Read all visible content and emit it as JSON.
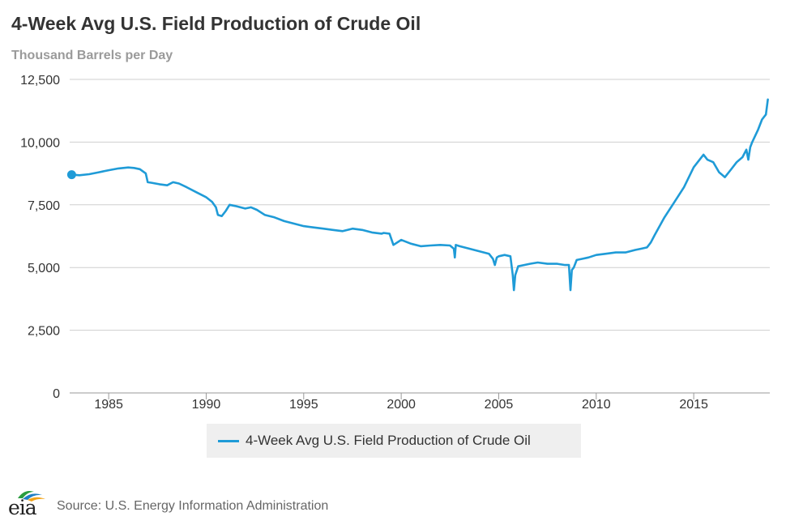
{
  "header": {
    "title": "4-Week Avg U.S. Field Production of Crude Oil",
    "subtitle": "Thousand Barrels per Day"
  },
  "legend": {
    "label": "4-Week Avg U.S. Field Production of Crude Oil"
  },
  "footer": {
    "logo_text": "eia",
    "source": "Source: U.S. Energy Information Administration"
  },
  "colors": {
    "series": "#1f9bd7",
    "grid": "#cfcfcf",
    "axis_text": "#333333"
  },
  "chart_data": {
    "type": "line",
    "title": "4-Week Avg U.S. Field Production of Crude Oil",
    "ylabel": "Thousand Barrels per Day",
    "xlim": [
      1983,
      2018.9
    ],
    "ylim": [
      0,
      12500
    ],
    "yticks": [
      0,
      2500,
      5000,
      7500,
      10000,
      12500
    ],
    "ytick_labels": [
      "0",
      "2,500",
      "5,000",
      "7,500",
      "10,000",
      "12,500"
    ],
    "xticks": [
      1985,
      1990,
      1995,
      2000,
      2005,
      2010,
      2015
    ],
    "xtick_labels": [
      "1985",
      "1990",
      "1995",
      "2000",
      "2005",
      "2010",
      "2015"
    ],
    "grid": true,
    "legend_position": "bottom",
    "series": [
      {
        "name": "4-Week Avg U.S. Field Production of Crude Oil",
        "x": [
          1983.1,
          1983.5,
          1984.0,
          1984.5,
          1985.0,
          1985.5,
          1986.0,
          1986.3,
          1986.6,
          1986.9,
          1987.0,
          1987.2,
          1987.6,
          1988.0,
          1988.3,
          1988.6,
          1989.0,
          1989.5,
          1990.0,
          1990.3,
          1990.5,
          1990.6,
          1990.8,
          1991.0,
          1991.2,
          1991.5,
          1992.0,
          1992.3,
          1992.6,
          1993.0,
          1993.5,
          1994.0,
          1994.5,
          1995.0,
          1995.5,
          1996.0,
          1996.5,
          1997.0,
          1997.5,
          1998.0,
          1998.5,
          1999.0,
          1999.1,
          1999.4,
          1999.6,
          2000.0,
          2000.5,
          2001.0,
          2001.5,
          2002.0,
          2002.5,
          2002.7,
          2002.75,
          2002.8,
          2003.0,
          2003.5,
          2004.0,
          2004.5,
          2004.7,
          2004.8,
          2004.9,
          2005.0,
          2005.3,
          2005.6,
          2005.72,
          2005.78,
          2005.85,
          2006.0,
          2006.3,
          2006.6,
          2007.0,
          2007.5,
          2008.0,
          2008.4,
          2008.6,
          2008.68,
          2008.75,
          2008.85,
          2009.0,
          2009.3,
          2009.6,
          2010.0,
          2010.5,
          2011.0,
          2011.5,
          2012.0,
          2012.3,
          2012.6,
          2012.75,
          2012.8,
          2013.0,
          2013.5,
          2014.0,
          2014.5,
          2015.0,
          2015.3,
          2015.5,
          2015.7,
          2016.0,
          2016.3,
          2016.6,
          2016.9,
          2017.2,
          2017.5,
          2017.7,
          2017.8,
          2017.9,
          2018.0,
          2018.3,
          2018.5,
          2018.7,
          2018.8
        ],
        "values": [
          8700,
          8680,
          8720,
          8800,
          8880,
          8950,
          8990,
          8970,
          8920,
          8750,
          8400,
          8380,
          8320,
          8280,
          8400,
          8350,
          8200,
          8000,
          7800,
          7620,
          7400,
          7100,
          7050,
          7250,
          7500,
          7450,
          7350,
          7400,
          7300,
          7100,
          7000,
          6850,
          6750,
          6650,
          6600,
          6550,
          6500,
          6450,
          6550,
          6500,
          6400,
          6350,
          6380,
          6350,
          5900,
          6100,
          5950,
          5850,
          5880,
          5900,
          5880,
          5750,
          5400,
          5900,
          5850,
          5750,
          5650,
          5550,
          5350,
          5100,
          5400,
          5450,
          5500,
          5450,
          4700,
          4100,
          4700,
          5050,
          5100,
          5150,
          5200,
          5150,
          5150,
          5100,
          5100,
          4100,
          4900,
          5000,
          5300,
          5350,
          5400,
          5500,
          5550,
          5600,
          5600,
          5700,
          5750,
          5800,
          5950,
          6000,
          6300,
          7000,
          7600,
          8200,
          9000,
          9300,
          9500,
          9300,
          9200,
          8800,
          8600,
          8900,
          9200,
          9400,
          9700,
          9300,
          9800,
          10000,
          10500,
          10900,
          11100,
          11700
        ]
      }
    ]
  }
}
